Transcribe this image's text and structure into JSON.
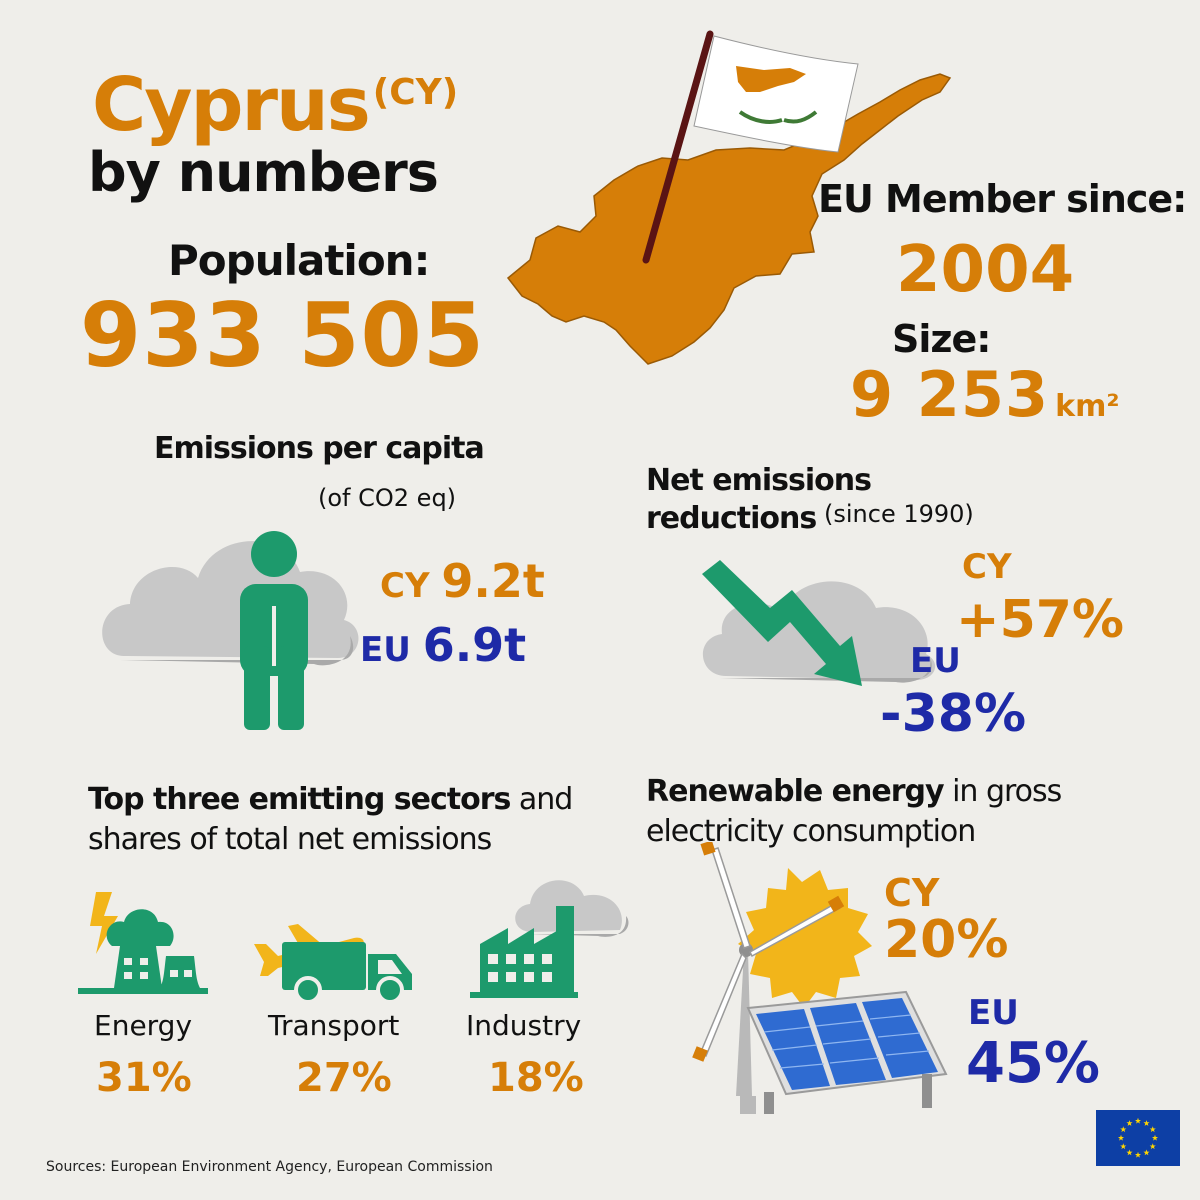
{
  "header": {
    "title": "Cyprus",
    "code": "(CY)",
    "subtitle": "by numbers"
  },
  "population": {
    "label": "Population:",
    "value": "933 505"
  },
  "membership": {
    "label": "EU Member since:",
    "value": "2004"
  },
  "size": {
    "label": "Size:",
    "value": "9 253",
    "unit": "km²"
  },
  "emissions_per_capita": {
    "title": "Emissions per capita",
    "subtitle": "(of CO2 eq)",
    "cy_label": "CY",
    "cy_value": "9.2t",
    "eu_label": "EU",
    "eu_value": "6.9t"
  },
  "net_reductions": {
    "title_line1": "Net emissions",
    "title_line2": "reductions",
    "since": "(since 1990)",
    "cy_label": "CY",
    "cy_value": "+57%",
    "eu_label": "EU",
    "eu_value": "-38%"
  },
  "sectors": {
    "title_bold": "Top three emitting sectors",
    "title_rest": " and",
    "title_line2": "shares of total net emissions",
    "items": [
      {
        "label": "Energy",
        "value": "31%",
        "icon": "power-plant-icon"
      },
      {
        "label": "Transport",
        "value": "27%",
        "icon": "plane-truck-icon"
      },
      {
        "label": "Industry",
        "value": "18%",
        "icon": "factory-icon"
      }
    ]
  },
  "renewable": {
    "title_bold": "Renewable energy",
    "title_rest": " in gross",
    "title_line2": "electricity consumption",
    "cy_label": "CY",
    "cy_value": "20%",
    "eu_label": "EU",
    "eu_value": "45%"
  },
  "sources": "Sources: European Environment Agency, European Commission",
  "colors": {
    "orange": "#d67e08",
    "blue": "#1e2aa7",
    "green": "#1d9a6c",
    "cloud": "#c9c9c9",
    "eu_flag": "#0d3fa5",
    "stars": "#ffd500"
  }
}
